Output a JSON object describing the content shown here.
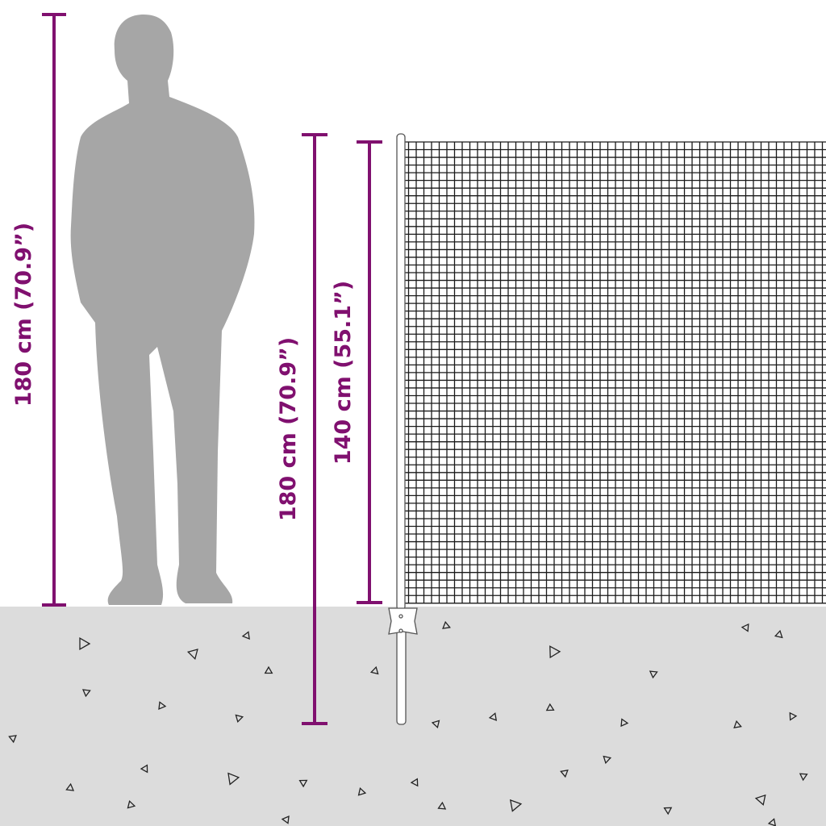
{
  "colors": {
    "dimension": "#80106f",
    "ground": "#dcdcdc",
    "silhouette": "#a6a6a6",
    "mesh": "#1a1a1a"
  },
  "dimensions": {
    "person_height": "180 cm (70.9”)",
    "post_length": "180 cm (70.9”)",
    "net_height": "140 cm (55.1”)"
  }
}
